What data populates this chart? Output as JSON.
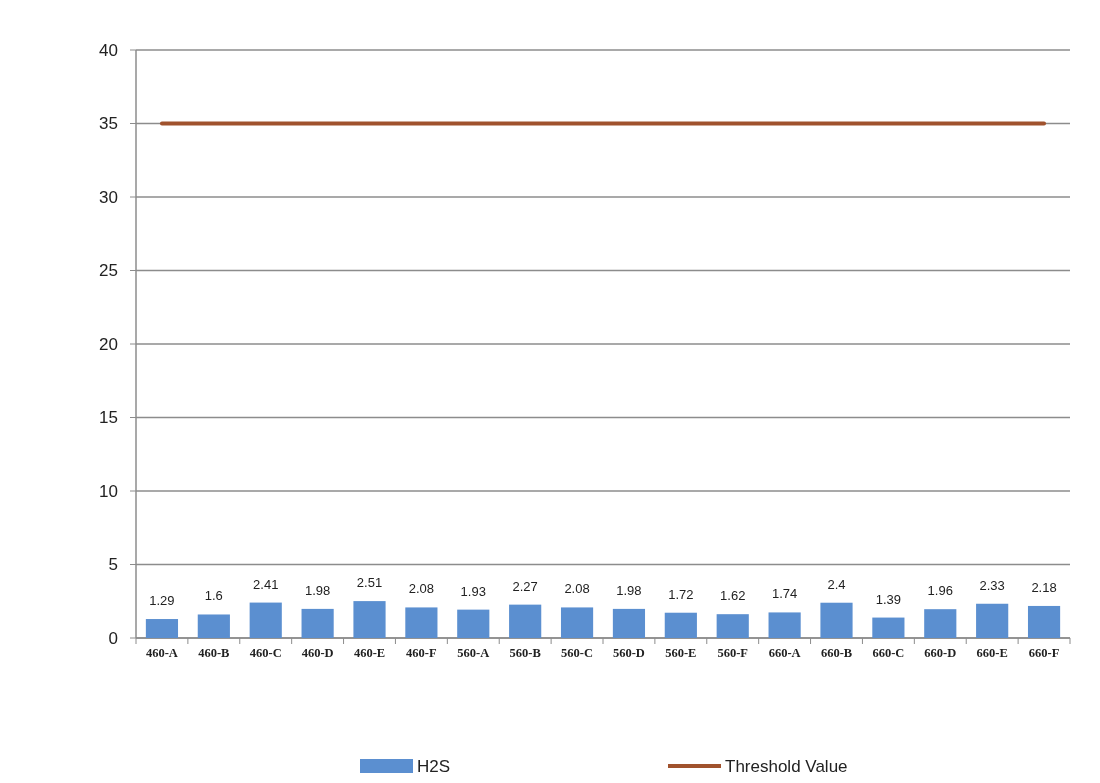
{
  "chart_data": {
    "type": "bar",
    "categories": [
      "460-A",
      "460-B",
      "460-C",
      "460-D",
      "460-E",
      "460-F",
      "560-A",
      "560-B",
      "560-C",
      "560-D",
      "560-E",
      "560-F",
      "660-A",
      "660-B",
      "660-C",
      "660-D",
      "660-E",
      "660-F"
    ],
    "series": [
      {
        "name": "H2S",
        "color": "#5b8fd0",
        "values": [
          1.29,
          1.6,
          2.41,
          1.98,
          2.51,
          2.08,
          1.93,
          2.27,
          2.08,
          1.98,
          1.72,
          1.62,
          1.74,
          2.4,
          1.39,
          1.96,
          2.33,
          2.18
        ],
        "value_labels": [
          "1.29",
          "1.6",
          "2.41",
          "1.98",
          "2.51",
          "2.08",
          "1.93",
          "2.27",
          "2.08",
          "1.98",
          "1.72",
          "1.62",
          "1.74",
          "2.4",
          "1.39",
          "1.96",
          "2.33",
          "2.18"
        ]
      },
      {
        "name": "Threshold Value",
        "type": "line",
        "color": "#a0522d",
        "values": [
          35,
          35,
          35,
          35,
          35,
          35,
          35,
          35,
          35,
          35,
          35,
          35,
          35,
          35,
          35,
          35,
          35,
          35
        ]
      }
    ],
    "ylim": [
      0,
      40
    ],
    "yticks": [
      0,
      5,
      10,
      15,
      20,
      25,
      30,
      35,
      40
    ],
    "grid": "y",
    "legend": "bottom"
  }
}
